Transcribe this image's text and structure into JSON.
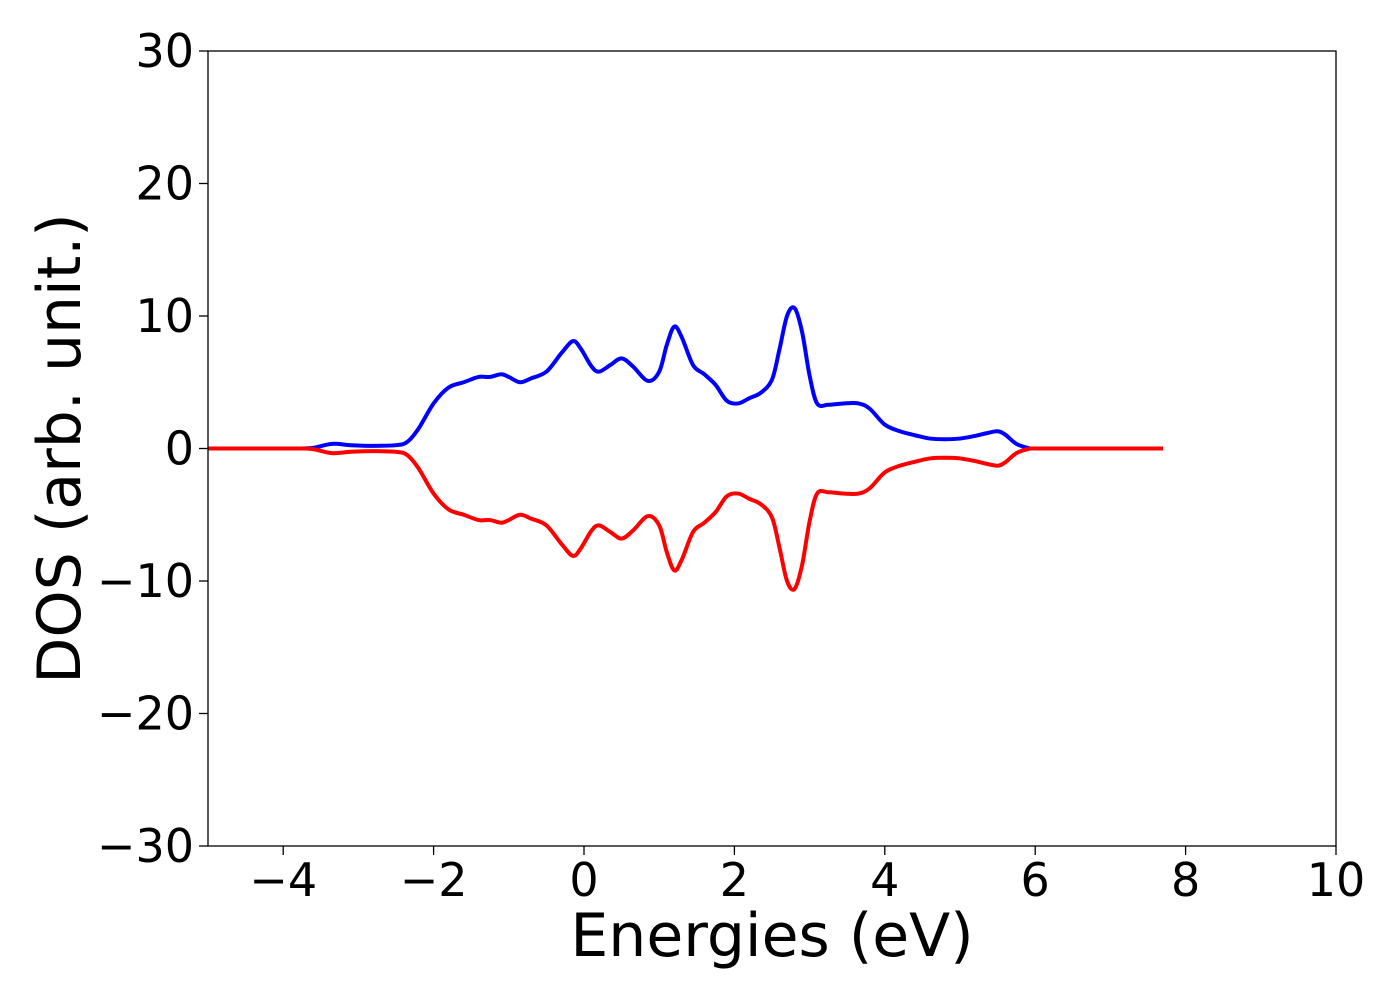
{
  "chart_data": {
    "type": "line",
    "title": "",
    "xlabel": "Energies (eV)",
    "ylabel": "DOS (arb. unit.)",
    "xlim": [
      -5,
      10
    ],
    "ylim": [
      -30,
      30
    ],
    "xticks": [
      -4,
      -2,
      0,
      2,
      4,
      6,
      8,
      10
    ],
    "yticks": [
      -30,
      -20,
      -10,
      0,
      10,
      20,
      30
    ],
    "grid": false,
    "legend": "none",
    "series": [
      {
        "color": "#0000ff",
        "x": [
          -5.0,
          -4.0,
          -3.8,
          -3.6,
          -3.35,
          -3.1,
          -2.8,
          -2.5,
          -2.35,
          -2.2,
          -2.0,
          -1.8,
          -1.6,
          -1.4,
          -1.25,
          -1.1,
          -1.0,
          -0.85,
          -0.7,
          -0.5,
          -0.3,
          -0.15,
          -0.05,
          0.1,
          0.2,
          0.35,
          0.5,
          0.65,
          0.85,
          1.0,
          1.1,
          1.2,
          1.3,
          1.45,
          1.6,
          1.75,
          1.9,
          2.05,
          2.2,
          2.35,
          2.5,
          2.6,
          2.7,
          2.8,
          2.9,
          3.0,
          3.1,
          3.25,
          3.45,
          3.65,
          3.8,
          4.0,
          4.2,
          4.4,
          4.6,
          4.8,
          5.0,
          5.2,
          5.35,
          5.5,
          5.6,
          5.75,
          5.9,
          6.0,
          6.5,
          7.0,
          7.7
        ],
        "y": [
          0,
          0,
          0,
          0.05,
          0.35,
          0.25,
          0.2,
          0.25,
          0.5,
          1.5,
          3.4,
          4.6,
          5.0,
          5.4,
          5.4,
          5.6,
          5.4,
          5.0,
          5.3,
          5.8,
          7.2,
          8.1,
          7.6,
          6.2,
          5.8,
          6.3,
          6.8,
          6.2,
          5.1,
          5.8,
          7.8,
          9.2,
          8.4,
          6.3,
          5.6,
          4.8,
          3.6,
          3.4,
          3.8,
          4.2,
          5.2,
          7.5,
          10.0,
          10.6,
          8.8,
          5.5,
          3.4,
          3.3,
          3.4,
          3.4,
          3.0,
          1.8,
          1.3,
          1.0,
          0.75,
          0.7,
          0.75,
          0.95,
          1.15,
          1.3,
          1.05,
          0.35,
          0.05,
          0,
          0,
          0,
          0
        ]
      },
      {
        "color": "#ff0000",
        "x": [
          -5.0,
          -4.0,
          -3.8,
          -3.6,
          -3.35,
          -3.1,
          -2.8,
          -2.5,
          -2.35,
          -2.2,
          -2.0,
          -1.8,
          -1.6,
          -1.4,
          -1.25,
          -1.1,
          -1.0,
          -0.85,
          -0.7,
          -0.5,
          -0.3,
          -0.15,
          -0.05,
          0.1,
          0.2,
          0.35,
          0.5,
          0.65,
          0.85,
          1.0,
          1.1,
          1.2,
          1.3,
          1.45,
          1.6,
          1.75,
          1.9,
          2.05,
          2.2,
          2.35,
          2.5,
          2.6,
          2.7,
          2.8,
          2.9,
          3.0,
          3.1,
          3.25,
          3.45,
          3.65,
          3.8,
          4.0,
          4.2,
          4.4,
          4.6,
          4.8,
          5.0,
          5.2,
          5.35,
          5.5,
          5.6,
          5.75,
          5.9,
          6.0,
          6.5,
          7.0,
          7.7
        ],
        "y": [
          0,
          0,
          0,
          -0.05,
          -0.35,
          -0.25,
          -0.2,
          -0.25,
          -0.5,
          -1.5,
          -3.4,
          -4.6,
          -5.0,
          -5.4,
          -5.4,
          -5.6,
          -5.4,
          -5.0,
          -5.3,
          -5.8,
          -7.2,
          -8.1,
          -7.6,
          -6.2,
          -5.8,
          -6.3,
          -6.8,
          -6.2,
          -5.1,
          -5.8,
          -7.8,
          -9.2,
          -8.4,
          -6.3,
          -5.6,
          -4.8,
          -3.6,
          -3.4,
          -3.8,
          -4.2,
          -5.2,
          -7.5,
          -10.0,
          -10.6,
          -8.8,
          -5.5,
          -3.4,
          -3.3,
          -3.4,
          -3.4,
          -3.0,
          -1.8,
          -1.3,
          -1.0,
          -0.75,
          -0.7,
          -0.75,
          -0.95,
          -1.15,
          -1.3,
          -1.05,
          -0.35,
          -0.05,
          0,
          0,
          0,
          0
        ]
      }
    ]
  }
}
